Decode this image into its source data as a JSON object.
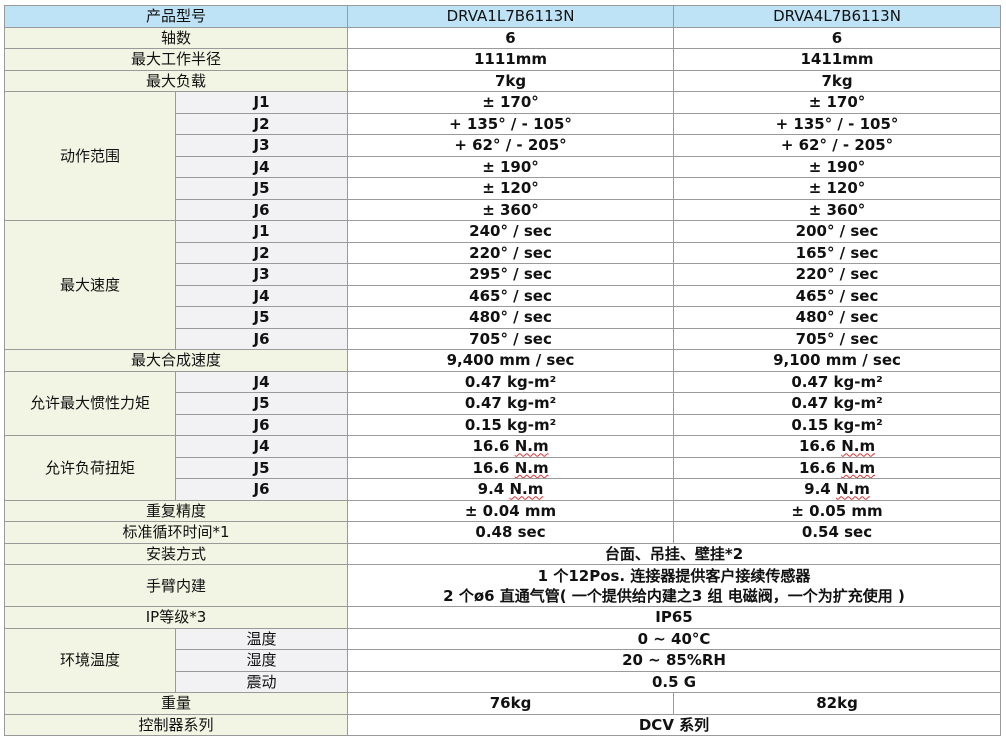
{
  "header": {
    "label": "产品型号",
    "models": [
      "DRVA1L7B6113N",
      "DRVA4L7B6113N"
    ]
  },
  "simple_top": [
    {
      "label": "轴数",
      "values": [
        "6",
        "6"
      ]
    },
    {
      "label": "最大工作半径",
      "values": [
        "1111mm",
        "1411mm"
      ]
    },
    {
      "label": "最大负载",
      "values": [
        "7kg",
        "7kg"
      ]
    }
  ],
  "groups": {
    "range": {
      "label": "动作范围",
      "rows": [
        {
          "sub": "J1",
          "values": [
            "± 170°",
            "± 170°"
          ]
        },
        {
          "sub": "J2",
          "values": [
            "+ 135° / - 105°",
            "+ 135° / - 105°"
          ]
        },
        {
          "sub": "J3",
          "values": [
            "+ 62° / - 205°",
            "+ 62° / - 205°"
          ]
        },
        {
          "sub": "J4",
          "values": [
            "± 190°",
            "± 190°"
          ]
        },
        {
          "sub": "J5",
          "values": [
            "± 120°",
            "± 120°"
          ]
        },
        {
          "sub": "J6",
          "values": [
            "± 360°",
            "± 360°"
          ]
        }
      ]
    },
    "speed": {
      "label": "最大速度",
      "rows": [
        {
          "sub": "J1",
          "values": [
            "240° / sec",
            "200° / sec"
          ]
        },
        {
          "sub": "J2",
          "values": [
            "220° / sec",
            "165° / sec"
          ]
        },
        {
          "sub": "J3",
          "values": [
            "295° / sec",
            "220° / sec"
          ]
        },
        {
          "sub": "J4",
          "values": [
            "465° / sec",
            "465° / sec"
          ]
        },
        {
          "sub": "J5",
          "values": [
            "480° / sec",
            "480° / sec"
          ]
        },
        {
          "sub": "J6",
          "values": [
            "705° / sec",
            "705° / sec"
          ]
        }
      ]
    },
    "composite": {
      "label": "最大合成速度",
      "values": [
        "9,400 mm / sec",
        "9,100 mm / sec"
      ]
    },
    "inertia": {
      "label": "允许最大惯性力矩",
      "rows": [
        {
          "sub": "J4",
          "values": [
            "0.47 kg-m²",
            "0.47 kg-m²"
          ]
        },
        {
          "sub": "J5",
          "values": [
            "0.47 kg-m²",
            "0.47 kg-m²"
          ]
        },
        {
          "sub": "J6",
          "values": [
            "0.15 kg-m²",
            "0.15 kg-m²"
          ]
        }
      ]
    },
    "torque": {
      "label": "允许负荷扭矩",
      "rows": [
        {
          "sub": "J4",
          "values": [
            "16.6 N.m",
            "16.6 N.m"
          ]
        },
        {
          "sub": "J5",
          "values": [
            "16.6 N.m",
            "16.6 N.m"
          ]
        },
        {
          "sub": "J6",
          "values": [
            "9.4 N.m",
            "9.4 N.m"
          ]
        }
      ]
    }
  },
  "repeat": {
    "label": "重复精度",
    "values": [
      "± 0.04 mm",
      "± 0.05 mm"
    ]
  },
  "cycle": {
    "label": "标准循环时间*1",
    "values": [
      "0.48 sec",
      "0.54 sec"
    ]
  },
  "mount": {
    "label": "安装方式",
    "value": "台面、吊挂、壁挂*2"
  },
  "arm": {
    "label": "手臂内建",
    "lines": [
      "1 个12Pos. 连接器提供客户接续传感器",
      "2 个ø6 直通气管( 一个提供给内建之3 组 电磁阀，一个为扩充使用 )"
    ]
  },
  "ip": {
    "label": "IP等级*3",
    "value": "IP65"
  },
  "env": {
    "label": "环境温度",
    "rows": [
      {
        "sub": "温度",
        "value": "0 ~ 40°C"
      },
      {
        "sub": "湿度",
        "value": "20 ~ 85%RH"
      },
      {
        "sub": "震动",
        "value": "0.5 G"
      }
    ]
  },
  "weight": {
    "label": "重量",
    "values": [
      "76kg",
      "82kg"
    ]
  },
  "controller": {
    "label": "控制器系列",
    "value": "DCV 系列"
  },
  "colors": {
    "header_bg": "#bfe3f6",
    "label_bg": "#f3f5e4",
    "sub_bg": "#f2f2f5"
  }
}
